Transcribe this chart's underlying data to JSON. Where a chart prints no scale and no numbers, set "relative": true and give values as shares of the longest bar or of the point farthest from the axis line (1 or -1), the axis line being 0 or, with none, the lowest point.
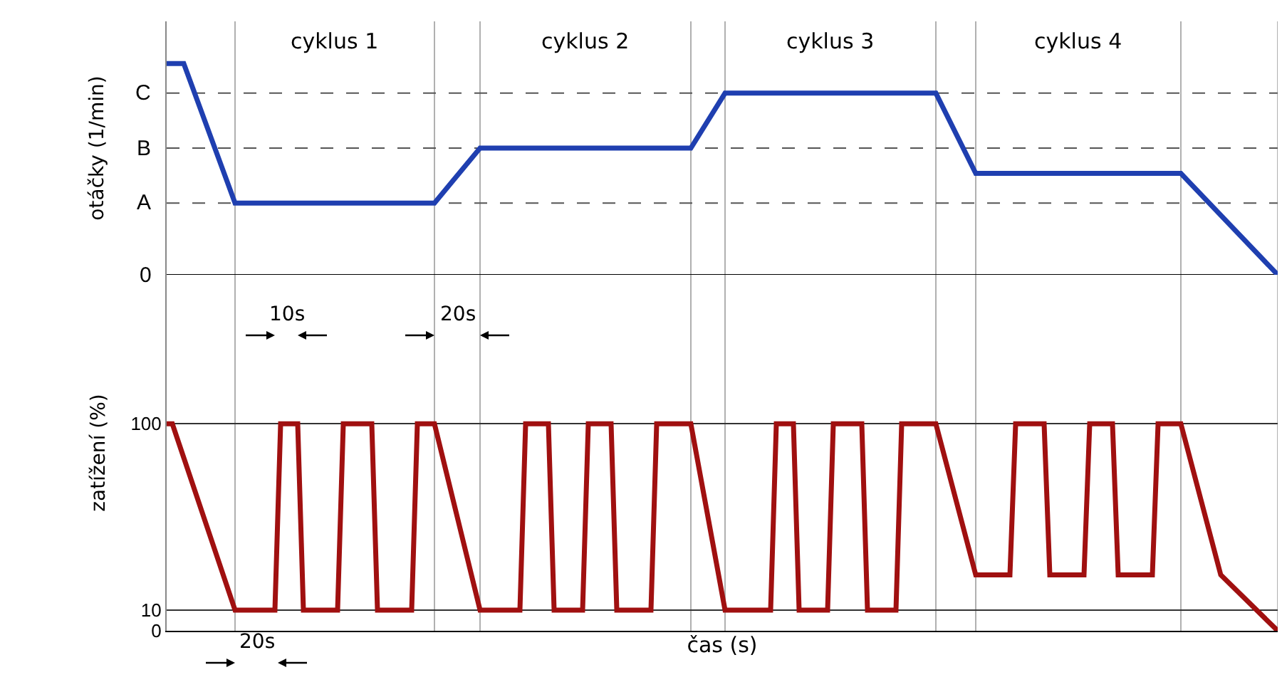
{
  "chart_data": [
    {
      "type": "line",
      "ylabel": "otáčky (1/min)",
      "categories": [
        null,
        null,
        null,
        null,
        null,
        null,
        null,
        null,
        null,
        null,
        null,
        null,
        null,
        null,
        null,
        null,
        null,
        null,
        null,
        null,
        null,
        null,
        null,
        null,
        null,
        null,
        null,
        null,
        null,
        null,
        null,
        null,
        null,
        null,
        null,
        null,
        null,
        null,
        null,
        null,
        null,
        null,
        null,
        null,
        null,
        null,
        null,
        null,
        null,
        null,
        null,
        null,
        null,
        null,
        null,
        null,
        null,
        null,
        null,
        null,
        null,
        null,
        null,
        null,
        null,
        null,
        null,
        null,
        null,
        null,
        null,
        null,
        null,
        null,
        null,
        null,
        null,
        null,
        null,
        null,
        null,
        null,
        null,
        null,
        null,
        null,
        null,
        null,
        null,
        null,
        null,
        null,
        null,
        null,
        null,
        null,
        null,
        null,
        null,
        null,
        null,
        null,
        null,
        null,
        null,
        null,
        null,
        null,
        null,
        null,
        null,
        null,
        null,
        null,
        null,
        null,
        null,
        null,
        null,
        null,
        null,
        null,
        null,
        null,
        null,
        null,
        null,
        null,
        null,
        null,
        null,
        null,
        null,
        null,
        null,
        null,
        null,
        null,
        null,
        null,
        null,
        null,
        null,
        null,
        null,
        null,
        null,
        null,
        null,
        null,
        null,
        null,
        null,
        null,
        null,
        null,
        null,
        null,
        null,
        null,
        null,
        null,
        null,
        null,
        null,
        null,
        null,
        null,
        null,
        null,
        null,
        null,
        null,
        null,
        null,
        null,
        null,
        null,
        null,
        null,
        null,
        null,
        null,
        null,
        null,
        null,
        null,
        null,
        null,
        null,
        null,
        null,
        null,
        null,
        null,
        null
      ],
      "relative": true,
      "tick_labels": "y",
      "marker": "none",
      "ref_lines": [
        {
          "axis": "y",
          "value": 0,
          "label": "0",
          "line_style": "solid",
          "color": "#000000"
        },
        {
          "axis": "y",
          "value": 0.34,
          "label": "A",
          "line_style": "dashed",
          "color": "#555555"
        },
        {
          "axis": "y",
          "value": 0.6,
          "label": "B",
          "line_style": "dashed",
          "color": "#555555"
        },
        {
          "axis": "y",
          "value": 0.86,
          "label": "C",
          "line_style": "dashed",
          "color": "#555555"
        }
      ],
      "series": [
        {
          "color": "#1f3fb0",
          "values": [
            1,
            null,
            null,
            1,
            null,
            null,
            null,
            null,
            null,
            null,
            null,
            null,
            0.34,
            null,
            null,
            null,
            null,
            null,
            null,
            null,
            null,
            null,
            null,
            null,
            null,
            null,
            null,
            null,
            null,
            null,
            null,
            null,
            null,
            null,
            null,
            null,
            null,
            null,
            null,
            null,
            null,
            null,
            null,
            null,
            null,
            null,
            null,
            0.34,
            null,
            null,
            null,
            null,
            null,
            null,
            null,
            0.6,
            null,
            null,
            null,
            null,
            null,
            null,
            null,
            null,
            null,
            null,
            null,
            null,
            null,
            null,
            null,
            null,
            null,
            null,
            null,
            null,
            null,
            null,
            null,
            null,
            null,
            null,
            null,
            null,
            null,
            null,
            null,
            null,
            null,
            null,
            null,
            null,
            0.6,
            null,
            null,
            null,
            null,
            null,
            0.86,
            null,
            null,
            null,
            null,
            null,
            null,
            null,
            null,
            null,
            null,
            null,
            null,
            null,
            null,
            null,
            null,
            null,
            null,
            null,
            null,
            null,
            null,
            null,
            null,
            null,
            null,
            null,
            null,
            null,
            null,
            null,
            null,
            null,
            null,
            null,
            null,
            0.86,
            null,
            null,
            null,
            null,
            null,
            null,
            0.48,
            null,
            null,
            null,
            null,
            null,
            null,
            null,
            null,
            null,
            null,
            null,
            null,
            null,
            null,
            null,
            null,
            null,
            null,
            null,
            null,
            null,
            null,
            null,
            null,
            null,
            null,
            null,
            null,
            null,
            null,
            null,
            null,
            null,
            null,
            null,
            0.48,
            null,
            null,
            null,
            null,
            null,
            null,
            null,
            null,
            null,
            null,
            null,
            null,
            null,
            null,
            null,
            null,
            0
          ]
        }
      ],
      "annotations": [
        "cyklus 1",
        "cyklus 2",
        "cyklus 3",
        "cyklus 4"
      ]
    },
    {
      "type": "line",
      "ylabel": "zatížení (%)",
      "xlabel": "čas (s)",
      "categories": [
        null,
        null,
        null,
        null,
        null,
        null,
        null,
        null,
        null,
        null,
        null,
        null,
        null,
        null,
        null,
        null,
        null,
        null,
        null,
        null,
        null,
        null,
        null,
        null,
        null,
        null,
        null,
        null,
        null,
        null,
        null,
        null,
        null,
        null,
        null,
        null,
        null,
        null,
        null,
        null,
        null,
        null,
        null,
        null,
        null,
        null,
        null,
        null,
        null,
        null,
        null,
        null,
        null,
        null,
        null,
        null,
        null,
        null,
        null,
        null,
        null,
        null,
        null,
        null,
        null,
        null,
        null,
        null,
        null,
        null,
        null,
        null,
        null,
        null,
        null,
        null,
        null,
        null,
        null,
        null,
        null,
        null,
        null,
        null,
        null,
        null,
        null,
        null,
        null,
        null,
        null,
        null,
        null,
        null,
        null,
        null,
        null,
        null,
        null,
        null,
        null,
        null,
        null,
        null,
        null,
        null,
        null,
        null,
        null,
        null,
        null,
        null,
        null,
        null,
        null,
        null,
        null,
        null,
        null,
        null,
        null,
        null,
        null,
        null,
        null,
        null,
        null,
        null,
        null,
        null,
        null,
        null,
        null,
        null,
        null,
        null,
        null,
        null,
        null,
        null,
        null,
        null,
        null,
        null,
        null,
        null,
        null,
        null,
        null,
        null,
        null,
        null,
        null,
        null,
        null,
        null,
        null,
        null,
        null,
        null,
        null,
        null,
        null,
        null,
        null,
        null,
        null,
        null,
        null,
        null,
        null,
        null,
        null,
        null,
        null,
        null,
        null,
        null,
        null,
        null,
        null,
        null,
        null,
        null,
        null,
        null,
        null,
        null,
        null,
        null,
        null,
        null,
        null,
        null,
        null,
        null
      ],
      "ylim": [
        0,
        172
      ],
      "yticks": [
        0,
        10,
        100
      ],
      "tick_labels": "y",
      "grid": "y",
      "marker": "none",
      "series": [
        {
          "color": "#a01010",
          "values": [
            100,
            100,
            null,
            null,
            null,
            null,
            null,
            null,
            null,
            null,
            null,
            null,
            10,
            null,
            null,
            null,
            null,
            null,
            null,
            10,
            100,
            null,
            null,
            100,
            10,
            null,
            null,
            null,
            null,
            null,
            10,
            100,
            null,
            null,
            null,
            null,
            100,
            10,
            null,
            null,
            null,
            null,
            null,
            10,
            100,
            null,
            null,
            100,
            null,
            null,
            null,
            null,
            null,
            null,
            null,
            10,
            null,
            null,
            null,
            null,
            null,
            null,
            10,
            100,
            null,
            null,
            null,
            100,
            10,
            null,
            null,
            null,
            null,
            10,
            100,
            null,
            null,
            null,
            100,
            10,
            null,
            null,
            null,
            null,
            null,
            10,
            100,
            null,
            null,
            null,
            null,
            null,
            100,
            null,
            null,
            null,
            null,
            null,
            10,
            null,
            null,
            null,
            null,
            null,
            null,
            null,
            10,
            100,
            null,
            null,
            100,
            10,
            null,
            null,
            null,
            null,
            10,
            100,
            null,
            null,
            null,
            null,
            100,
            10,
            null,
            null,
            null,
            null,
            10,
            100,
            null,
            null,
            null,
            null,
            null,
            100,
            null,
            null,
            null,
            null,
            null,
            null,
            27,
            null,
            null,
            null,
            null,
            null,
            27,
            100,
            null,
            null,
            null,
            null,
            100,
            27,
            null,
            null,
            null,
            null,
            null,
            27,
            100,
            null,
            null,
            null,
            100,
            27,
            null,
            null,
            null,
            null,
            null,
            27,
            100,
            null,
            null,
            null,
            100,
            null,
            null,
            null,
            null,
            null,
            null,
            27,
            null,
            null,
            null,
            null,
            null,
            null,
            null,
            null,
            null,
            0
          ]
        }
      ],
      "annotations": [
        "10s",
        "20s",
        "20s"
      ]
    }
  ]
}
